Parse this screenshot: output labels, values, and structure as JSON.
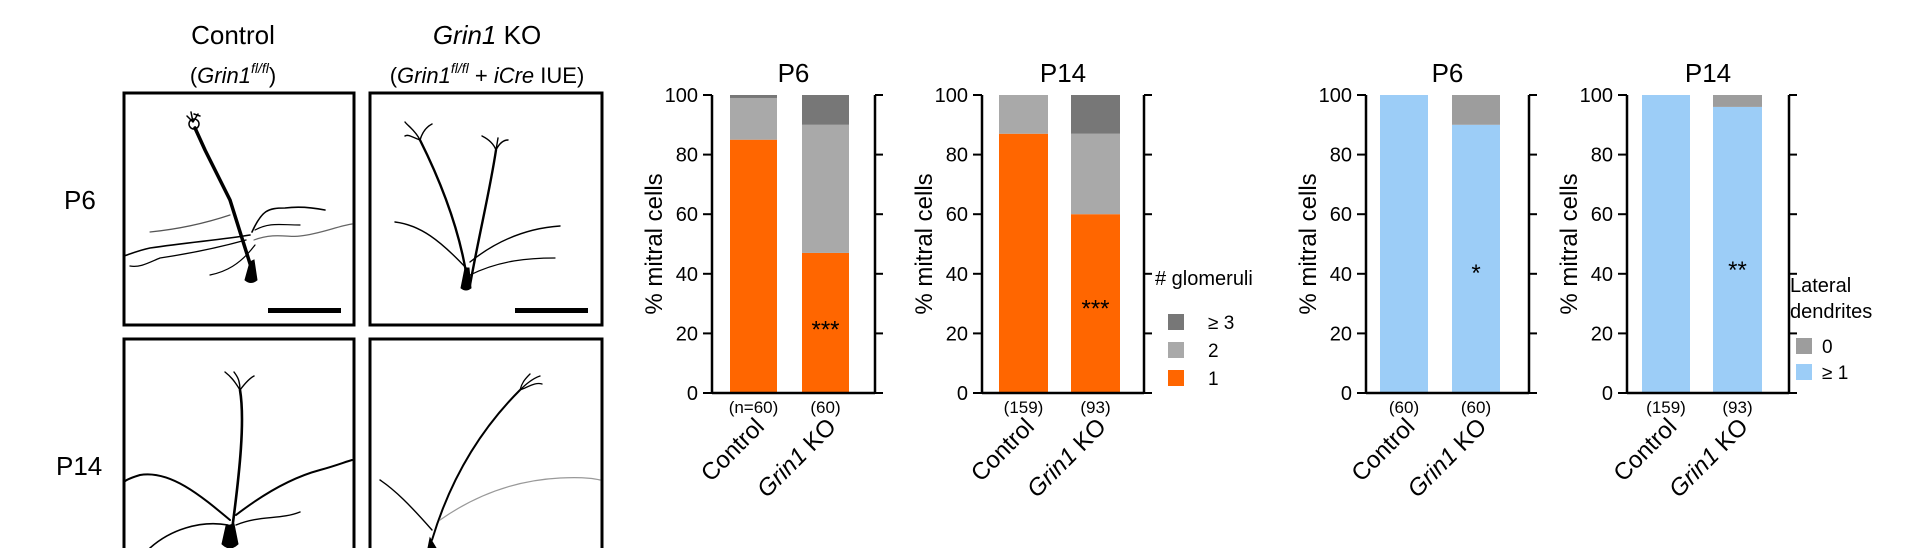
{
  "neuron_panel": {
    "columns": [
      {
        "title": "Control",
        "genotype_pre": "(",
        "genotype_gene": "Grin1",
        "genotype_sup": "fl/fl",
        "genotype_post": ")"
      },
      {
        "title_gene": "Grin1",
        "title_rest": " KO",
        "genotype_pre": "(",
        "genotype_gene": "Grin1",
        "genotype_sup": "fl/fl",
        "genotype_mid": " + ",
        "genotype_cre": "iCre",
        "genotype_post": " IUE)"
      }
    ],
    "rows": [
      "P6",
      "P14"
    ]
  },
  "x_labels": {
    "control": "Control",
    "ko_gene": "Grin1",
    "ko_rest": " KO"
  },
  "legends": {
    "glomeruli": {
      "title": "# glomeruli",
      "items": [
        {
          "label": "≥ 3",
          "color": "#777777"
        },
        {
          "label": "2",
          "color": "#a9a9a9"
        },
        {
          "label": "1",
          "color": "#ff6600"
        }
      ]
    },
    "dendrites": {
      "title_line1": "Lateral",
      "title_line2": "dendrites",
      "items": [
        {
          "label": "0",
          "color": "#9d9d9d"
        },
        {
          "label": "≥ 1",
          "color": "#9ccdf7"
        }
      ]
    }
  },
  "chart_data": [
    {
      "type": "bar",
      "stacked": true,
      "title": "P6",
      "ylabel": "% mitral cells",
      "ylim": [
        0,
        100
      ],
      "yticks": [
        0,
        20,
        40,
        60,
        80,
        100
      ],
      "categories": [
        "Control",
        "Grin1 KO"
      ],
      "n_labels": [
        "(n=60)",
        "(60)"
      ],
      "series": [
        {
          "name": "1",
          "color": "#ff6600",
          "values": [
            85,
            47
          ]
        },
        {
          "name": "2",
          "color": "#a9a9a9",
          "values": [
            14,
            43
          ]
        },
        {
          "name": "≥ 3",
          "color": "#777777",
          "values": [
            1,
            10
          ]
        }
      ],
      "annotations": [
        {
          "category": 1,
          "y": 22,
          "text": "***"
        }
      ]
    },
    {
      "type": "bar",
      "stacked": true,
      "title": "P14",
      "ylabel": "% mitral cells",
      "ylim": [
        0,
        100
      ],
      "yticks": [
        0,
        20,
        40,
        60,
        80,
        100
      ],
      "categories": [
        "Control",
        "Grin1 KO"
      ],
      "n_labels": [
        "(159)",
        "(93)"
      ],
      "series": [
        {
          "name": "1",
          "color": "#ff6600",
          "values": [
            87,
            60
          ]
        },
        {
          "name": "2",
          "color": "#a9a9a9",
          "values": [
            13,
            27
          ]
        },
        {
          "name": "≥ 3",
          "color": "#777777",
          "values": [
            0,
            13
          ]
        }
      ],
      "annotations": [
        {
          "category": 1,
          "y": 29,
          "text": "***"
        }
      ]
    },
    {
      "type": "bar",
      "stacked": true,
      "title": "P6",
      "ylabel": "% mitral cells",
      "ylim": [
        0,
        100
      ],
      "yticks": [
        0,
        20,
        40,
        60,
        80,
        100
      ],
      "categories": [
        "Control",
        "Grin1 KO"
      ],
      "n_labels": [
        "(60)",
        "(60)"
      ],
      "series": [
        {
          "name": "≥ 1",
          "color": "#9ccdf7",
          "values": [
            100,
            90
          ]
        },
        {
          "name": "0",
          "color": "#9d9d9d",
          "values": [
            0,
            10
          ]
        }
      ],
      "annotations": [
        {
          "category": 1,
          "y": 41,
          "text": "*"
        }
      ]
    },
    {
      "type": "bar",
      "stacked": true,
      "title": "P14",
      "ylabel": "% mitral cells",
      "ylim": [
        0,
        100
      ],
      "yticks": [
        0,
        20,
        40,
        60,
        80,
        100
      ],
      "categories": [
        "Control",
        "Grin1 KO"
      ],
      "n_labels": [
        "(159)",
        "(93)"
      ],
      "series": [
        {
          "name": "≥ 1",
          "color": "#9ccdf7",
          "values": [
            100,
            96
          ]
        },
        {
          "name": "0",
          "color": "#9d9d9d",
          "values": [
            0,
            4
          ]
        }
      ],
      "annotations": [
        {
          "category": 1,
          "y": 42,
          "text": "**"
        }
      ]
    }
  ]
}
